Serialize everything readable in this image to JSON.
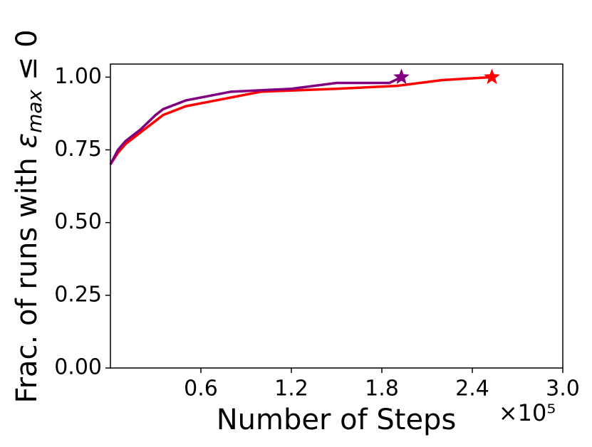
{
  "chart_data": {
    "type": "line",
    "xlabel": "Number of Steps",
    "x_multiplier": "×10⁵",
    "ylabel": {
      "text": "Frac. of runs with ",
      "symbol": "ε",
      "subscript": "max",
      "tail": " ≤ 0"
    },
    "xlim": [
      0,
      3.0
    ],
    "ylim": [
      0,
      1.045
    ],
    "xticks": [
      0.6,
      1.2,
      1.8,
      2.4,
      {
        "value": 3,
        "label": "3.0"
      }
    ],
    "yticks": [
      {
        "value": 0,
        "label": "0.00"
      },
      0.25,
      {
        "value": 0.5,
        "label": "0.50"
      },
      0.75,
      {
        "value": 1,
        "label": "1.00"
      }
    ],
    "end_marker": "star",
    "series": [
      {
        "color": "#ff0000",
        "x": [
          0,
          0.05,
          0.1,
          0.2,
          0.3,
          0.35,
          0.5,
          0.7,
          0.9,
          1.0,
          1.5,
          1.9,
          2.2,
          2.53
        ],
        "values": [
          0.7,
          0.74,
          0.77,
          0.81,
          0.85,
          0.87,
          0.9,
          0.92,
          0.94,
          0.95,
          0.96,
          0.97,
          0.99,
          1.0
        ]
      },
      {
        "color": "#800080",
        "x": [
          0,
          0.05,
          0.1,
          0.2,
          0.3,
          0.35,
          0.5,
          0.8,
          1.2,
          1.5,
          1.85,
          1.93
        ],
        "values": [
          0.7,
          0.75,
          0.78,
          0.82,
          0.87,
          0.89,
          0.92,
          0.95,
          0.96,
          0.98,
          0.98,
          1.0
        ]
      }
    ]
  }
}
